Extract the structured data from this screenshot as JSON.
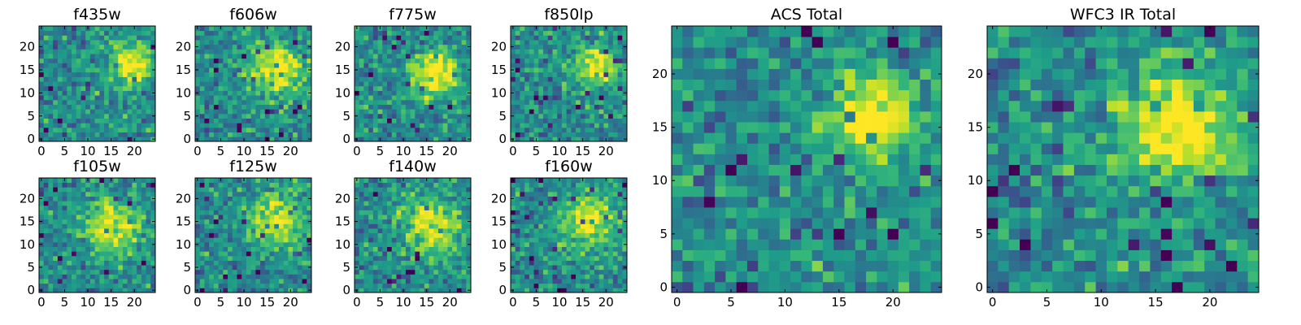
{
  "chart_data": [
    {
      "type": "heatmap",
      "title": "f435w",
      "x_ticks": [
        0,
        5,
        10,
        15,
        20
      ],
      "y_ticks": [
        0,
        5,
        10,
        15,
        20
      ],
      "xlim": [
        -0.5,
        24.5
      ],
      "ylim": [
        -0.5,
        24.5
      ],
      "grid_size": 25,
      "colormap": "viridis",
      "peak": {
        "x": 19,
        "y": 16,
        "sigma": 3.2,
        "strength": 0.55
      },
      "seed": 11
    },
    {
      "type": "heatmap",
      "title": "f606w",
      "x_ticks": [
        0,
        5,
        10,
        15,
        20
      ],
      "y_ticks": [
        0,
        5,
        10,
        15,
        20
      ],
      "xlim": [
        -0.5,
        24.5
      ],
      "ylim": [
        -0.5,
        24.5
      ],
      "grid_size": 25,
      "colormap": "viridis",
      "peak": {
        "x": 17,
        "y": 15,
        "sigma": 4.0,
        "strength": 0.55
      },
      "seed": 23
    },
    {
      "type": "heatmap",
      "title": "f775w",
      "x_ticks": [
        0,
        5,
        10,
        15,
        20
      ],
      "y_ticks": [
        0,
        5,
        10,
        15,
        20
      ],
      "xlim": [
        -0.5,
        24.5
      ],
      "ylim": [
        -0.5,
        24.5
      ],
      "grid_size": 25,
      "colormap": "viridis",
      "peak": {
        "x": 17,
        "y": 14,
        "sigma": 3.6,
        "strength": 0.6
      },
      "seed": 37
    },
    {
      "type": "heatmap",
      "title": "f850lp",
      "x_ticks": [
        0,
        5,
        10,
        15,
        20
      ],
      "y_ticks": [
        0,
        5,
        10,
        15,
        20
      ],
      "xlim": [
        -0.5,
        24.5
      ],
      "ylim": [
        -0.5,
        24.5
      ],
      "grid_size": 25,
      "colormap": "viridis",
      "peak": {
        "x": 18,
        "y": 16,
        "sigma": 3.2,
        "strength": 0.5
      },
      "seed": 41
    },
    {
      "type": "heatmap",
      "title": "f105w",
      "x_ticks": [
        0,
        5,
        10,
        15,
        20
      ],
      "y_ticks": [
        0,
        5,
        10,
        15,
        20
      ],
      "xlim": [
        -0.5,
        24.5
      ],
      "ylim": [
        -0.5,
        24.5
      ],
      "grid_size": 25,
      "colormap": "viridis",
      "peak": {
        "x": 15,
        "y": 14,
        "sigma": 4.5,
        "strength": 0.45
      },
      "seed": 53
    },
    {
      "type": "heatmap",
      "title": "f125w",
      "x_ticks": [
        0,
        5,
        10,
        15,
        20
      ],
      "y_ticks": [
        0,
        5,
        10,
        15,
        20
      ],
      "xlim": [
        -0.5,
        24.5
      ],
      "ylim": [
        -0.5,
        24.5
      ],
      "grid_size": 25,
      "colormap": "viridis",
      "peak": {
        "x": 17,
        "y": 15,
        "sigma": 4.5,
        "strength": 0.45
      },
      "seed": 67
    },
    {
      "type": "heatmap",
      "title": "f140w",
      "x_ticks": [
        0,
        5,
        10,
        15,
        20
      ],
      "y_ticks": [
        0,
        5,
        10,
        15,
        20
      ],
      "xlim": [
        -0.5,
        24.5
      ],
      "ylim": [
        -0.5,
        24.5
      ],
      "grid_size": 25,
      "colormap": "viridis",
      "peak": {
        "x": 16,
        "y": 14,
        "sigma": 4.2,
        "strength": 0.5
      },
      "seed": 71
    },
    {
      "type": "heatmap",
      "title": "f160w",
      "x_ticks": [
        0,
        5,
        10,
        15,
        20
      ],
      "y_ticks": [
        0,
        5,
        10,
        15,
        20
      ],
      "xlim": [
        -0.5,
        24.5
      ],
      "ylim": [
        -0.5,
        24.5
      ],
      "grid_size": 25,
      "colormap": "viridis",
      "peak": {
        "x": 16,
        "y": 15,
        "sigma": 4.2,
        "strength": 0.5
      },
      "seed": 83
    },
    {
      "type": "heatmap",
      "title": "ACS Total",
      "x_ticks": [
        0,
        5,
        10,
        15,
        20
      ],
      "y_ticks": [
        0,
        5,
        10,
        15,
        20
      ],
      "xlim": [
        -0.5,
        24.5
      ],
      "ylim": [
        -0.5,
        24.5
      ],
      "grid_size": 25,
      "colormap": "viridis",
      "peak": {
        "x": 18,
        "y": 16,
        "sigma": 2.8,
        "strength": 0.6
      },
      "seed": 97
    },
    {
      "type": "heatmap",
      "title": "WFC3 IR Total",
      "x_ticks": [
        0,
        5,
        10,
        15,
        20
      ],
      "y_ticks": [
        0,
        5,
        10,
        15,
        20
      ],
      "xlim": [
        -0.5,
        24.5
      ],
      "ylim": [
        -0.5,
        24.5
      ],
      "grid_size": 25,
      "colormap": "viridis",
      "peak": {
        "x": 17,
        "y": 15,
        "sigma": 3.8,
        "strength": 0.6
      },
      "seed": 109
    }
  ]
}
